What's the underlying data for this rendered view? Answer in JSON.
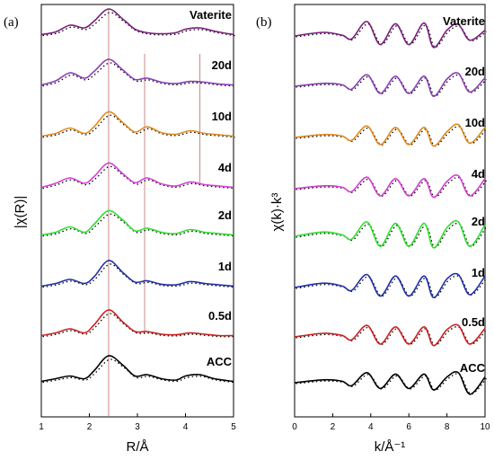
{
  "chart_data": [
    {
      "type": "line",
      "panel_label": "(a)",
      "xlabel": "R/Å",
      "ylabel": "|χ(R)|",
      "xlim": [
        1,
        5
      ],
      "xticks": [
        "1",
        "2",
        "3",
        "4",
        "5"
      ],
      "reference_lines_x": [
        2.4,
        3.15,
        4.3
      ],
      "reference_line_color": "#c98a8a",
      "legend": "none",
      "grid": false,
      "line_styles": {
        "experimental": "solid",
        "fit": "dotted"
      },
      "series": [
        {
          "name": "Vaterite",
          "color": "#7b1f7e",
          "x": [
            1.0,
            1.3,
            1.6,
            1.9,
            2.1,
            2.4,
            2.7,
            2.95,
            3.2,
            3.5,
            3.8,
            4.0,
            4.3,
            4.6,
            5.0
          ],
          "y": [
            0.05,
            0.15,
            0.4,
            0.3,
            0.55,
            1.0,
            0.62,
            0.25,
            0.12,
            0.08,
            0.12,
            0.25,
            0.3,
            0.18,
            0.05
          ]
        },
        {
          "name": "20d",
          "color": "#8b3fb5",
          "x": [
            1.0,
            1.3,
            1.6,
            1.9,
            2.1,
            2.4,
            2.7,
            2.95,
            3.2,
            3.5,
            3.8,
            4.1,
            4.4,
            4.7,
            5.0
          ],
          "y": [
            0.05,
            0.2,
            0.5,
            0.3,
            0.55,
            1.0,
            0.6,
            0.25,
            0.3,
            0.15,
            0.1,
            0.18,
            0.15,
            0.08,
            0.05
          ]
        },
        {
          "name": "10d",
          "color": "#e08a1e",
          "x": [
            1.0,
            1.3,
            1.6,
            1.9,
            2.1,
            2.4,
            2.7,
            2.95,
            3.2,
            3.5,
            3.8,
            4.1,
            4.4,
            4.7,
            5.0
          ],
          "y": [
            0.05,
            0.15,
            0.35,
            0.15,
            0.4,
            0.95,
            0.55,
            0.2,
            0.4,
            0.18,
            0.12,
            0.25,
            0.15,
            0.1,
            0.05
          ]
        },
        {
          "name": "4d",
          "color": "#d43fd4",
          "x": [
            1.0,
            1.3,
            1.6,
            1.9,
            2.1,
            2.4,
            2.7,
            2.95,
            3.2,
            3.5,
            3.8,
            4.1,
            4.4,
            4.7,
            5.0
          ],
          "y": [
            0.05,
            0.2,
            0.4,
            0.2,
            0.45,
            0.95,
            0.55,
            0.22,
            0.4,
            0.18,
            0.1,
            0.25,
            0.15,
            0.1,
            0.05
          ]
        },
        {
          "name": "2d",
          "color": "#2ee02e",
          "x": [
            1.0,
            1.3,
            1.6,
            1.9,
            2.1,
            2.4,
            2.7,
            2.95,
            3.2,
            3.5,
            3.8,
            4.1,
            4.4,
            4.7,
            5.0
          ],
          "y": [
            0.05,
            0.15,
            0.35,
            0.15,
            0.45,
            0.95,
            0.6,
            0.2,
            0.3,
            0.15,
            0.1,
            0.25,
            0.15,
            0.1,
            0.05
          ]
        },
        {
          "name": "1d",
          "color": "#1f2fa8",
          "x": [
            1.0,
            1.3,
            1.6,
            1.9,
            2.1,
            2.4,
            2.7,
            2.95,
            3.2,
            3.5,
            3.8,
            4.1,
            4.4,
            4.7,
            5.0
          ],
          "y": [
            0.05,
            0.15,
            0.3,
            0.15,
            0.4,
            1.0,
            0.55,
            0.2,
            0.25,
            0.12,
            0.1,
            0.22,
            0.15,
            0.1,
            0.05
          ]
        },
        {
          "name": "0.5d",
          "color": "#cc2020",
          "x": [
            1.0,
            1.3,
            1.6,
            1.9,
            2.1,
            2.4,
            2.7,
            2.95,
            3.2,
            3.5,
            3.8,
            4.1,
            4.4,
            4.7,
            5.0
          ],
          "y": [
            0.05,
            0.15,
            0.3,
            0.15,
            0.45,
            1.0,
            0.55,
            0.2,
            0.2,
            0.1,
            0.08,
            0.15,
            0.1,
            0.05,
            0.05
          ]
        },
        {
          "name": "ACC",
          "color": "#000000",
          "x": [
            1.0,
            1.3,
            1.6,
            1.9,
            2.1,
            2.4,
            2.7,
            2.95,
            3.2,
            3.5,
            3.8,
            4.0,
            4.3,
            4.6,
            5.0
          ],
          "y": [
            0.05,
            0.15,
            0.25,
            0.15,
            0.45,
            1.0,
            0.65,
            0.25,
            0.3,
            0.15,
            0.1,
            0.25,
            0.3,
            0.15,
            0.05
          ]
        }
      ]
    },
    {
      "type": "line",
      "panel_label": "(b)",
      "xlabel": "k/Å⁻¹",
      "ylabel": "χ(k)·k³",
      "xlim": [
        0,
        10
      ],
      "xticks": [
        "0",
        "2",
        "4",
        "6",
        "8",
        "10"
      ],
      "legend": "none",
      "grid": false,
      "line_styles": {
        "experimental": "solid",
        "fit": "dotted"
      },
      "series": [
        {
          "name": "Vaterite",
          "color": "#7b1f7e",
          "x": [
            0,
            1.5,
            2.5,
            3.0,
            3.8,
            4.5,
            5.3,
            6.0,
            6.8,
            7.3,
            8.0,
            8.6,
            9.2,
            10.0
          ],
          "y": [
            0.0,
            0.25,
            0.05,
            -0.2,
            1.0,
            -0.6,
            0.85,
            -0.6,
            0.9,
            -0.8,
            0.4,
            0.8,
            -0.3,
            0.4
          ]
        },
        {
          "name": "20d",
          "color": "#8b3fb5",
          "x": [
            0,
            1.5,
            2.5,
            3.0,
            3.8,
            4.5,
            5.3,
            6.0,
            6.8,
            7.3,
            8.0,
            8.6,
            9.2,
            10.0
          ],
          "y": [
            0.0,
            0.2,
            0.1,
            -0.2,
            0.8,
            -0.5,
            0.7,
            -0.5,
            0.7,
            -0.7,
            0.5,
            0.9,
            -0.4,
            0.6
          ]
        },
        {
          "name": "10d",
          "color": "#e08a1e",
          "x": [
            0,
            1.5,
            2.5,
            3.0,
            3.8,
            4.5,
            5.3,
            6.0,
            6.8,
            7.3,
            8.0,
            8.6,
            9.2,
            10.0
          ],
          "y": [
            0.0,
            0.2,
            0.1,
            -0.2,
            0.8,
            -0.5,
            0.7,
            -0.5,
            0.7,
            -0.6,
            0.4,
            0.9,
            -0.4,
            0.7
          ]
        },
        {
          "name": "4d",
          "color": "#d43fd4",
          "x": [
            0,
            1.5,
            2.5,
            3.0,
            3.8,
            4.5,
            5.3,
            6.0,
            6.8,
            7.3,
            8.0,
            8.6,
            9.2,
            10.0
          ],
          "y": [
            0.0,
            0.2,
            0.1,
            -0.2,
            0.8,
            -0.5,
            0.7,
            -0.5,
            0.7,
            -0.6,
            0.5,
            0.9,
            -0.5,
            0.7
          ]
        },
        {
          "name": "2d",
          "color": "#2ee02e",
          "x": [
            0,
            1.5,
            2.5,
            3.0,
            3.8,
            4.5,
            5.3,
            6.0,
            6.8,
            7.3,
            8.0,
            8.6,
            9.2,
            10.0
          ],
          "y": [
            0.0,
            0.3,
            0.1,
            -0.2,
            1.0,
            -0.7,
            0.9,
            -0.7,
            0.9,
            -0.8,
            0.6,
            1.0,
            -0.7,
            0.8
          ]
        },
        {
          "name": "1d",
          "color": "#1f2fa8",
          "x": [
            0,
            1.5,
            2.5,
            3.0,
            3.8,
            4.5,
            5.3,
            6.0,
            6.8,
            7.3,
            8.0,
            8.6,
            9.2,
            10.0
          ],
          "y": [
            0.0,
            0.3,
            0.1,
            -0.2,
            0.9,
            -0.6,
            0.8,
            -0.6,
            0.8,
            -0.7,
            0.6,
            0.9,
            -0.5,
            0.8
          ]
        },
        {
          "name": "0.5d",
          "color": "#cc2020",
          "x": [
            0,
            1.5,
            2.5,
            3.0,
            3.8,
            4.5,
            5.3,
            6.0,
            6.8,
            7.3,
            8.0,
            8.6,
            9.2,
            10.0
          ],
          "y": [
            0.0,
            0.25,
            0.1,
            -0.2,
            0.8,
            -0.5,
            0.7,
            -0.5,
            0.7,
            -0.6,
            0.5,
            0.8,
            -0.5,
            0.6
          ]
        },
        {
          "name": "ACC",
          "color": "#000000",
          "x": [
            0,
            1.5,
            2.5,
            3.0,
            3.8,
            4.5,
            5.3,
            6.0,
            6.8,
            7.3,
            8.0,
            8.6,
            9.2,
            10.0
          ],
          "y": [
            0.0,
            0.2,
            0.1,
            -0.2,
            0.7,
            -0.4,
            0.6,
            -0.4,
            0.6,
            -0.5,
            0.4,
            0.7,
            -0.8,
            0.4
          ]
        }
      ]
    }
  ]
}
